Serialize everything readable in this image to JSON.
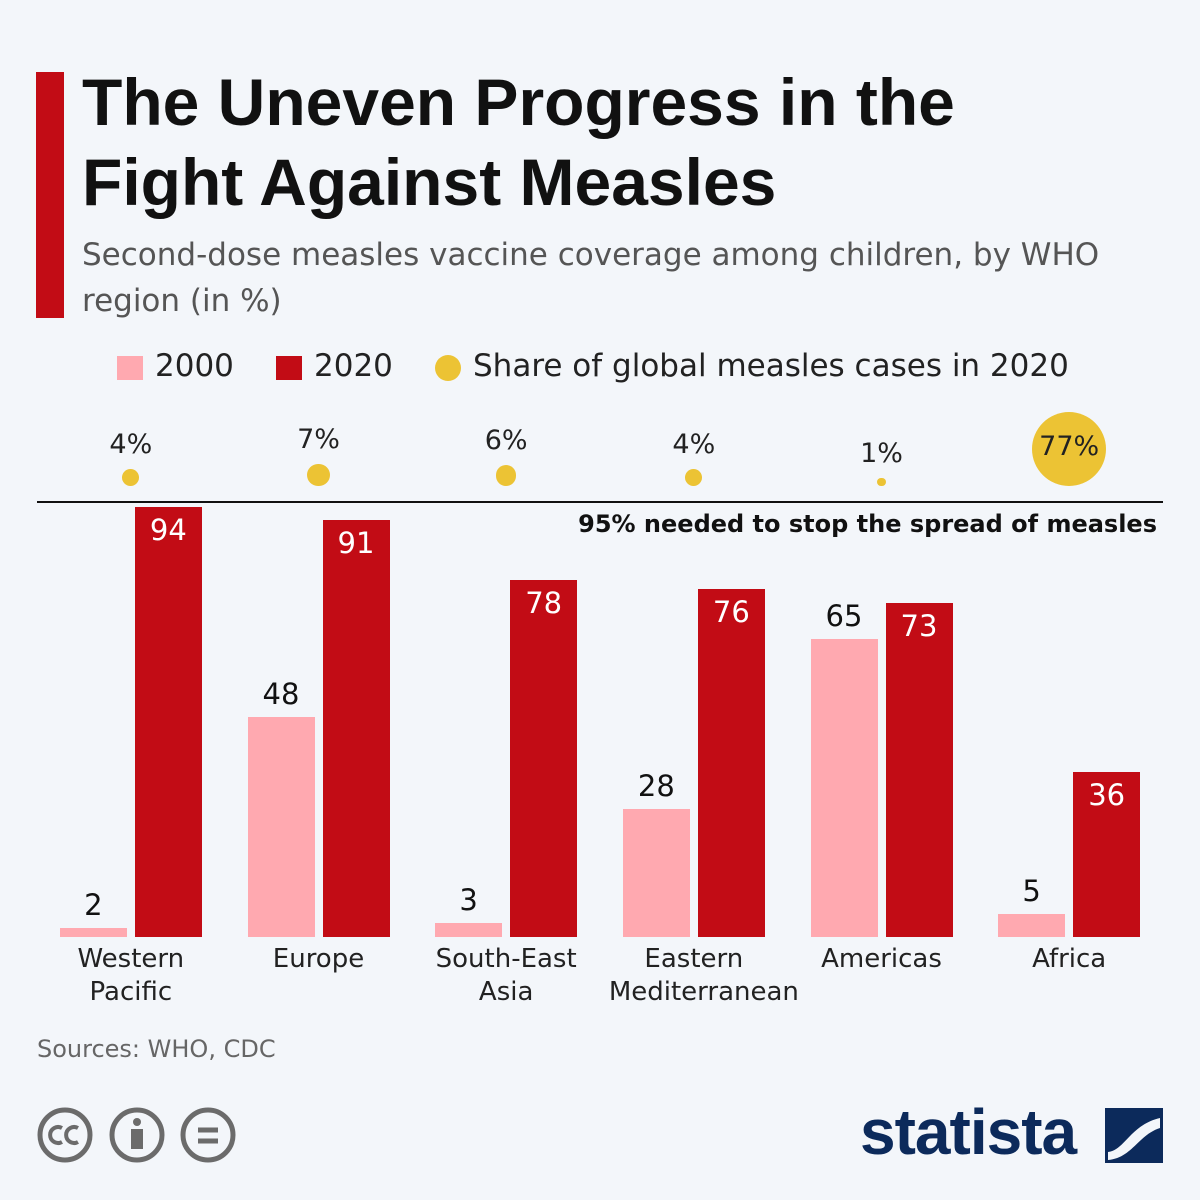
{
  "header": {
    "title": "The Uneven Progress in the Fight Against Measles",
    "subtitle": "Second-dose measles vaccine coverage among children, by WHO region (in %)"
  },
  "chart_data": {
    "type": "bar",
    "categories": [
      "Western Pacific",
      "Europe",
      "South-East Asia",
      "Eastern Mediterranean",
      "Americas",
      "Africa"
    ],
    "series": [
      {
        "name": "2000",
        "color": "#ffa9b0",
        "values": [
          2,
          48,
          3,
          28,
          65,
          5
        ]
      },
      {
        "name": "2020",
        "color": "#c20c15",
        "values": [
          94,
          91,
          78,
          76,
          73,
          36
        ]
      },
      {
        "name": "Share of global measles cases in 2020",
        "type": "bubble",
        "color": "#ecc334",
        "values": [
          4,
          7,
          6,
          4,
          1,
          77
        ],
        "value_labels": [
          "4%",
          "7%",
          "6%",
          "4%",
          "1%",
          "77%"
        ]
      }
    ],
    "ylim": [
      0,
      95
    ],
    "reference_line": {
      "value": 95,
      "label": "95% needed to stop the spread of measles"
    }
  },
  "footer": {
    "source": "Sources: WHO, CDC",
    "brand": "statista"
  }
}
